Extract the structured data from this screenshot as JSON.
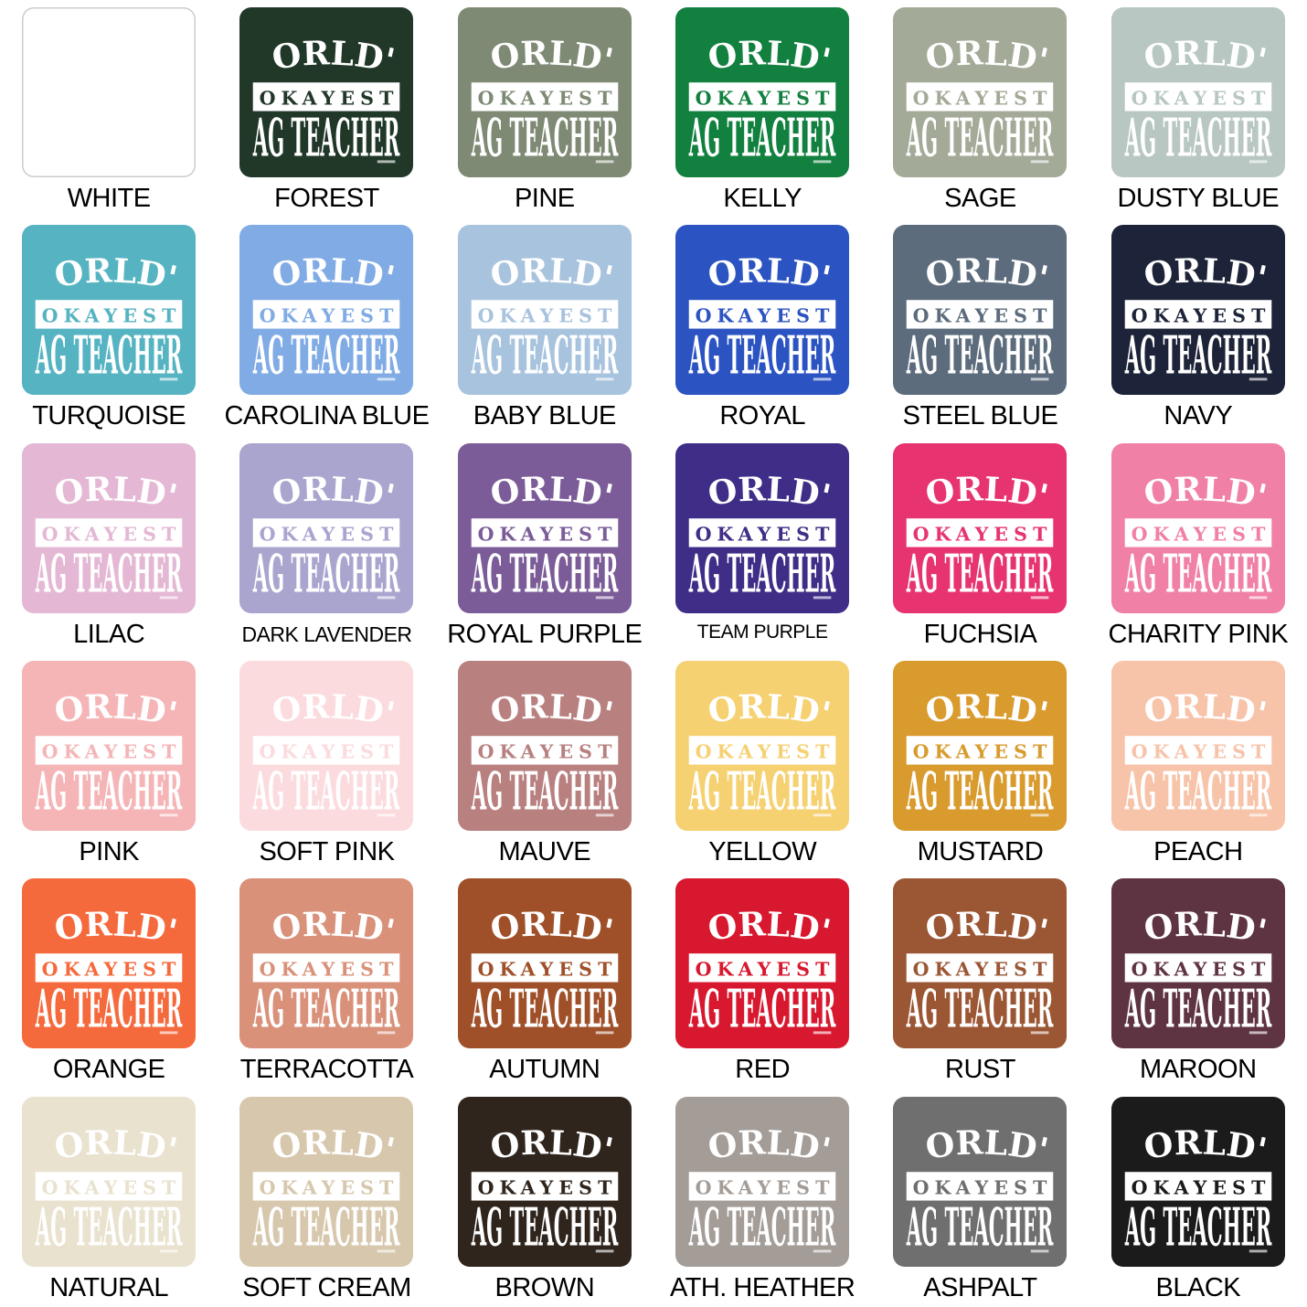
{
  "page": {
    "background": "#ffffff",
    "label_color": "#000000"
  },
  "design": {
    "line1": "WORLD'S",
    "line2": "OKAYEST",
    "line3": "AG TEACHER",
    "ink": "#ffffff"
  },
  "grid": {
    "columns": 6,
    "rows": 6,
    "swatches": [
      {
        "label": "WHITE",
        "color": "#ffffff",
        "border": true
      },
      {
        "label": "FOREST",
        "color": "#213829"
      },
      {
        "label": "PINE",
        "color": "#7e8a74"
      },
      {
        "label": "KELLY",
        "color": "#12803f"
      },
      {
        "label": "SAGE",
        "color": "#a3aa97"
      },
      {
        "label": "DUSTY BLUE",
        "color": "#b8c7c1"
      },
      {
        "label": "TURQUOISE",
        "color": "#56b4c2"
      },
      {
        "label": "CAROLINA BLUE",
        "color": "#80abe4"
      },
      {
        "label": "BABY BLUE",
        "color": "#a8c3de"
      },
      {
        "label": "ROYAL",
        "color": "#2b53c2"
      },
      {
        "label": "STEEL BLUE",
        "color": "#5c6c7c"
      },
      {
        "label": "NAVY",
        "color": "#1d2338"
      },
      {
        "label": "LILAC",
        "color": "#e4b8d4"
      },
      {
        "label": "DARK LAVENDER",
        "color": "#a9a5cf"
      },
      {
        "label": "ROYAL PURPLE",
        "color": "#7b5c98"
      },
      {
        "label": "TEAM PURPLE",
        "color": "#3f2d87"
      },
      {
        "label": "FUCHSIA",
        "color": "#e73470"
      },
      {
        "label": "CHARITY PINK",
        "color": "#f080a6"
      },
      {
        "label": "PINK",
        "color": "#f5b5b7"
      },
      {
        "label": "SOFT PINK",
        "color": "#fbdbde"
      },
      {
        "label": "MAUVE",
        "color": "#b98080"
      },
      {
        "label": "YELLOW",
        "color": "#f6d172"
      },
      {
        "label": "MUSTARD",
        "color": "#d99b2d"
      },
      {
        "label": "PEACH",
        "color": "#f7c3a9"
      },
      {
        "label": "ORANGE",
        "color": "#f56a3d"
      },
      {
        "label": "TERRACOTTA",
        "color": "#d9917a"
      },
      {
        "label": "AUTUMN",
        "color": "#9f5029"
      },
      {
        "label": "RED",
        "color": "#d7182f"
      },
      {
        "label": "RUST",
        "color": "#9b5634"
      },
      {
        "label": "MAROON",
        "color": "#5f3442"
      },
      {
        "label": "NATURAL",
        "color": "#e9e2cf"
      },
      {
        "label": "SOFT CREAM",
        "color": "#d7c8ad"
      },
      {
        "label": "BROWN",
        "color": "#2f251d"
      },
      {
        "label": "ATH. HEATHER",
        "color": "#a49c97"
      },
      {
        "label": "ASHPALT",
        "color": "#6f6f6f"
      },
      {
        "label": "BLACK",
        "color": "#1b1b1b"
      }
    ]
  }
}
